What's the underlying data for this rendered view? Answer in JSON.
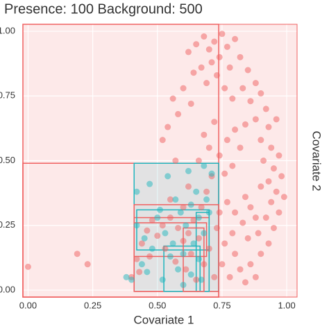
{
  "chart_data": {
    "type": "scatter",
    "title": "Presence: 100  Background: 500",
    "x_label": "Covariate 1",
    "y_label": "Covariate 2",
    "xlim": [
      -0.02,
      1.04
    ],
    "ylim": [
      -0.027,
      1.027
    ],
    "xticks": [
      {
        "value": 0,
        "label": "0.00"
      },
      0.25,
      {
        "value": 0.5,
        "label": "0.50"
      },
      0.75,
      {
        "value": 1,
        "label": "1.00"
      }
    ],
    "yticks": [
      {
        "value": 0,
        "label": "0.00"
      },
      0.25,
      {
        "value": 0.5,
        "label": "0.50"
      },
      0.75,
      {
        "value": 1,
        "label": "1.00"
      }
    ],
    "grid": true,
    "series": [
      {
        "color": "#f06060",
        "x": [
          0.62,
          0.65,
          0.68,
          0.7,
          0.72,
          0.75,
          0.77,
          0.8,
          0.74,
          0.71,
          0.67,
          0.64,
          0.69,
          0.73,
          0.78,
          0.82,
          0.85,
          0.88,
          0.83,
          0.6,
          0.56,
          0.58,
          0.63,
          0.54,
          0.52,
          0.76,
          0.79,
          0.86,
          0.9,
          0.92,
          0.88,
          0.93,
          0.96,
          0.9,
          0.94,
          0.97,
          0.91,
          0.95,
          0.98,
          0.93,
          0.96,
          0.9,
          0.99,
          0.94,
          0.97,
          0.92,
          0.95,
          0.89,
          0.93,
          0.9,
          0.86,
          0.88,
          0.84,
          0.82,
          0.78,
          0.75,
          0.8,
          0.76,
          0.79,
          0.83,
          0.8,
          0.86,
          0.84,
          0.88,
          0.85,
          0.74,
          0.77,
          0.73,
          0.76,
          0.79,
          0.82,
          0.8,
          0.84,
          0.77,
          0.74,
          0.72,
          0.7,
          0.68,
          0.66,
          0.71,
          0.69,
          0.67,
          0.64,
          0.62,
          0.6,
          0.58,
          0.55,
          0.52,
          0.5,
          0.48,
          0.46,
          0.44,
          0.42,
          0.4,
          0.43,
          0.47,
          0.53,
          0.57,
          0.61,
          0.63,
          0.65,
          0.68,
          0.7,
          0.66,
          0.72,
          0.0,
          0.19,
          0.23,
          0.57,
          0.62,
          0.6,
          0.55
        ],
        "y": [
          0.92,
          0.95,
          0.98,
          0.93,
          0.96,
          0.99,
          0.94,
          0.97,
          0.9,
          0.88,
          0.86,
          0.84,
          0.8,
          0.83,
          0.86,
          0.9,
          0.85,
          0.8,
          0.78,
          0.78,
          0.74,
          0.68,
          0.72,
          0.63,
          0.58,
          0.78,
          0.74,
          0.73,
          0.76,
          0.7,
          0.66,
          0.63,
          0.66,
          0.58,
          0.55,
          0.52,
          0.5,
          0.47,
          0.44,
          0.42,
          0.38,
          0.4,
          0.36,
          0.34,
          0.3,
          0.28,
          0.24,
          0.22,
          0.18,
          0.14,
          0.1,
          0.05,
          0.03,
          0.08,
          0.05,
          0.1,
          0.14,
          0.18,
          0.22,
          0.26,
          0.3,
          0.32,
          0.36,
          0.28,
          0.2,
          0.3,
          0.34,
          0.24,
          0.45,
          0.48,
          0.55,
          0.62,
          0.64,
          0.58,
          0.52,
          0.65,
          0.55,
          0.6,
          0.5,
          0.44,
          0.38,
          0.32,
          0.27,
          0.22,
          0.19,
          0.24,
          0.28,
          0.25,
          0.21,
          0.27,
          0.23,
          0.18,
          0.12,
          0.05,
          0.07,
          0.13,
          0.16,
          0.11,
          0.08,
          0.14,
          0.04,
          0.1,
          0.16,
          0.2,
          0.05,
          0.09,
          0.14,
          0.1,
          0.5,
          0.4,
          0.32,
          0.35
        ]
      },
      {
        "color": "#1fb5bd",
        "x": [
          0.4,
          0.38,
          0.44,
          0.48,
          0.45,
          0.42,
          0.5,
          0.53,
          0.55,
          0.58,
          0.52,
          0.6,
          0.63,
          0.66,
          0.64,
          0.61,
          0.59,
          0.57,
          0.63,
          0.66,
          0.68,
          0.7,
          0.69,
          0.71,
          0.68,
          0.62,
          0.54,
          0.47,
          0.42,
          0.51,
          0.56,
          0.46,
          0.67,
          0.65,
          0.6
        ],
        "y": [
          0.04,
          0.05,
          0.1,
          0.16,
          0.2,
          0.25,
          0.28,
          0.22,
          0.13,
          0.08,
          0.04,
          0.02,
          0.06,
          0.12,
          0.18,
          0.25,
          0.3,
          0.35,
          0.33,
          0.28,
          0.22,
          0.3,
          0.35,
          0.45,
          0.48,
          0.46,
          0.44,
          0.41,
          0.38,
          0.31,
          0.18,
          0.07,
          0.04,
          0.38,
          0.14
        ]
      }
    ],
    "regions": [
      {
        "color": "#f06060",
        "x": [
          -0.02,
          0.737
        ],
        "y": [
          -0.027,
          1.027
        ]
      },
      {
        "color": "#f06060",
        "x": [
          -0.02,
          0.737
        ],
        "y": [
          -0.027,
          0.49
        ]
      },
      {
        "color": "#1fb5bd",
        "x": [
          0.41,
          0.737
        ],
        "y": [
          -0.005,
          0.49
        ]
      },
      {
        "color": "#f06060",
        "x": [
          0.41,
          0.737
        ],
        "y": [
          -0.005,
          0.33
        ]
      },
      {
        "color": "#f06060",
        "x": [
          0.41,
          0.7
        ],
        "y": [
          -0.005,
          0.28
        ]
      },
      {
        "color": "#1fb5bd",
        "x": [
          0.42,
          0.7
        ],
        "y": [
          0.155,
          0.31
        ]
      },
      {
        "color": "#f06060",
        "x": [
          0.41,
          0.69
        ],
        "y": [
          0.13,
          0.26
        ]
      },
      {
        "color": "#1fb5bd",
        "x": [
          0.65,
          0.7
        ],
        "y": [
          -0.005,
          0.3
        ]
      },
      {
        "color": "#1fb5bd",
        "x": [
          0.525,
          0.665
        ],
        "y": [
          -0.005,
          0.17
        ]
      },
      {
        "color": "#f06060",
        "x": [
          0.6,
          0.68
        ],
        "y": [
          -0.005,
          0.24
        ]
      }
    ]
  }
}
